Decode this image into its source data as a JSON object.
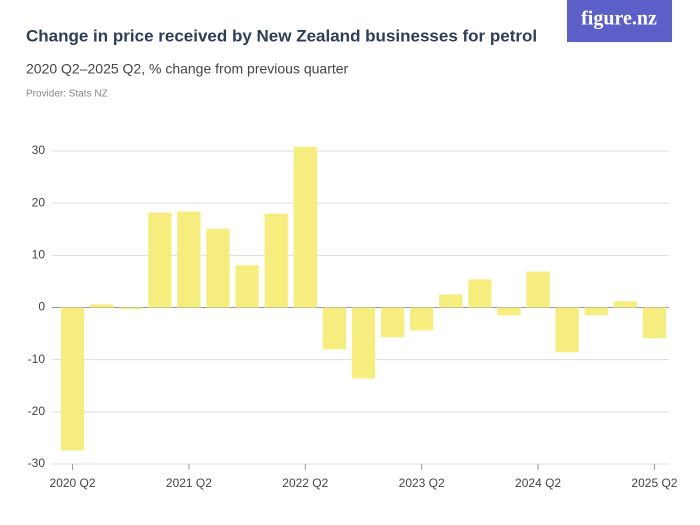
{
  "brand": "figure.nz",
  "chart_data": {
    "type": "bar",
    "title": "Change in price received by New Zealand businesses for petrol",
    "subtitle": "2020 Q2–2025 Q2, % change from previous quarter",
    "provider": "Provider: Stats NZ",
    "categories": [
      "2020 Q2",
      null,
      null,
      null,
      "2021 Q2",
      null,
      null,
      null,
      "2022 Q2",
      null,
      null,
      null,
      "2023 Q2",
      null,
      null,
      null,
      "2024 Q2",
      null,
      null,
      null,
      "2025 Q2"
    ],
    "values": [
      -27.4,
      0.6,
      -0.3,
      18.2,
      18.4,
      15.1,
      8.1,
      18.0,
      30.8,
      -8.0,
      -13.6,
      -5.7,
      -4.4,
      2.5,
      5.4,
      -1.5,
      6.9,
      -8.6,
      -1.5,
      1.2,
      -5.9
    ],
    "color": "#f5ee7e",
    "ylim": [
      -30,
      30
    ],
    "yticks": [
      -30,
      -20,
      -10,
      0,
      10,
      20,
      30
    ],
    "grid": true
  }
}
